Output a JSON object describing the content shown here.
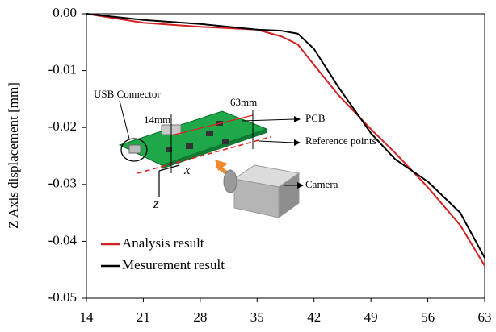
{
  "chart_data": {
    "type": "line",
    "ylabel": "Z Axis displacement [mm]",
    "x": [
      14,
      21,
      28,
      35,
      38,
      40,
      42,
      45,
      49,
      52,
      56,
      60,
      63
    ],
    "series": [
      {
        "name": "Analysis result",
        "color": "#d42020",
        "values": [
          0,
          -0.0016,
          -0.0023,
          -0.0028,
          -0.004,
          -0.0054,
          -0.009,
          -0.0143,
          -0.0203,
          -0.0245,
          -0.0305,
          -0.0372,
          -0.0443
        ]
      },
      {
        "name": "Mesurement result",
        "color": "#000000",
        "values": [
          0,
          -0.0011,
          -0.0018,
          -0.0028,
          -0.003,
          -0.0035,
          -0.0062,
          -0.0129,
          -0.021,
          -0.0256,
          -0.0295,
          -0.035,
          -0.0429
        ]
      }
    ],
    "xlim": [
      14,
      63
    ],
    "ylim": [
      -0.05,
      0
    ],
    "xticks": [
      14,
      21,
      28,
      35,
      42,
      49,
      56,
      63
    ],
    "yticks": [
      {
        "value": 0,
        "label": "0.00"
      },
      -0.01,
      -0.02,
      -0.03,
      -0.04,
      -0.05
    ],
    "annotations": [
      "USB Connector",
      "14mm",
      "63mm",
      "PCB",
      "Reference points",
      "Camera",
      "x",
      "z"
    ]
  }
}
